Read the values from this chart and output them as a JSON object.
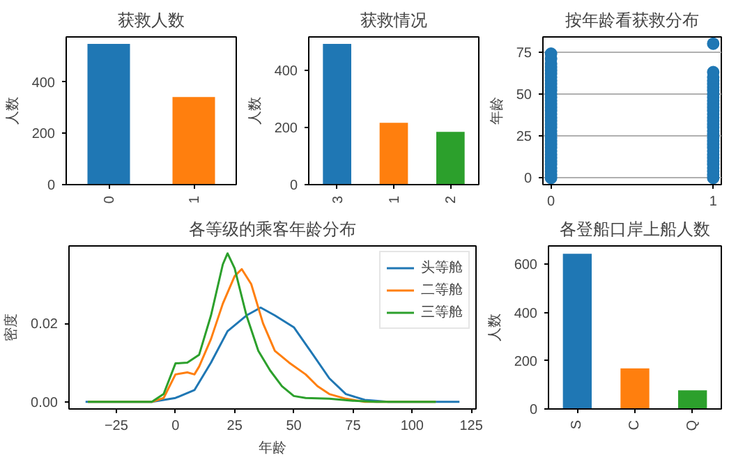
{
  "chart_data": [
    {
      "type": "bar",
      "title": "获救人数",
      "ylabel": "人数",
      "categories": [
        "0",
        "1"
      ],
      "values": [
        549,
        342
      ],
      "colors": [
        "#1f77b4",
        "#ff7f0e"
      ],
      "ylim": [
        0,
        576.45
      ],
      "yticks": [
        0,
        200,
        400
      ],
      "grid": false
    },
    {
      "type": "bar",
      "title": "获救情况",
      "ylabel": "人数",
      "categories": [
        "3",
        "1",
        "2"
      ],
      "values": [
        491,
        216,
        184
      ],
      "colors": [
        "#1f77b4",
        "#ff7f0e",
        "#2ca02c"
      ],
      "ylim": [
        0,
        515.55
      ],
      "yticks": [
        0,
        200,
        400
      ],
      "grid": false
    },
    {
      "type": "scatter",
      "title": "按年龄看获救分布",
      "ylabel": "年龄",
      "marker": "circle",
      "grid": "y",
      "xlim": [
        -0.05,
        1.05
      ],
      "xticks": [
        0,
        1
      ],
      "ylim": [
        -4,
        84
      ],
      "yticks": [
        0,
        25,
        50,
        75
      ],
      "series": [
        {
          "color": "#1f77b4",
          "x": [
            0,
            0,
            0,
            0,
            0,
            0,
            0,
            0,
            0,
            0,
            0,
            0,
            0,
            0,
            0,
            0,
            0,
            0,
            0,
            0,
            0,
            0,
            0,
            0,
            0,
            0,
            0,
            0,
            0,
            0,
            0,
            0,
            0,
            0,
            0,
            0,
            0,
            1,
            1,
            1,
            1,
            1,
            1,
            1,
            1,
            1,
            1,
            1,
            1,
            1,
            1,
            1,
            1,
            1,
            1,
            1,
            1,
            1,
            1,
            1,
            1,
            1,
            1,
            1,
            1,
            1,
            1,
            1,
            1,
            1
          ],
          "values": [
            0,
            2,
            4,
            6,
            8,
            10,
            12,
            14,
            16,
            18,
            20,
            22,
            24,
            26,
            28,
            30,
            32,
            34,
            36,
            38,
            40,
            42,
            44,
            46,
            48,
            50,
            52,
            54,
            56,
            58,
            60,
            62,
            64,
            66,
            68,
            71,
            74,
            0,
            2,
            4,
            6,
            8,
            10,
            12,
            14,
            16,
            18,
            20,
            22,
            24,
            26,
            28,
            30,
            32,
            34,
            36,
            38,
            40,
            42,
            44,
            46,
            48,
            50,
            52,
            54,
            56,
            58,
            60,
            63,
            80
          ]
        }
      ]
    },
    {
      "type": "line",
      "title": "各等级的乘客年龄分布",
      "xlabel": "年龄",
      "ylabel": "密度",
      "grid": false,
      "legend": "top right",
      "xlim": [
        -45,
        127
      ],
      "xticks": [
        -25,
        0,
        25,
        50,
        75,
        100,
        125
      ],
      "ylim": [
        -0.0018,
        0.0397
      ],
      "yticks": [
        {
          "value": 0,
          "label": "0.00"
        },
        {
          "value": 0.02,
          "label": "0.02"
        }
      ],
      "series": [
        {
          "name": "头等舱",
          "color": "#1f77b4",
          "x": [
            -38,
            -10,
            0,
            8,
            15,
            22,
            30,
            36,
            42,
            50,
            57,
            65,
            72,
            80,
            90,
            120
          ],
          "values": [
            0,
            0,
            0.001,
            0.003,
            0.01,
            0.018,
            0.022,
            0.024,
            0.022,
            0.019,
            0.013,
            0.006,
            0.002,
            0.0005,
            0,
            0
          ]
        },
        {
          "name": "二等舱",
          "color": "#ff7f0e",
          "x": [
            -37,
            -10,
            -5,
            0,
            5,
            8,
            10,
            15,
            20,
            25,
            28,
            32,
            37,
            42,
            48,
            55,
            60,
            65,
            72,
            80,
            110
          ],
          "values": [
            0,
            0,
            0.001,
            0.007,
            0.0075,
            0.007,
            0.009,
            0.016,
            0.025,
            0.032,
            0.0338,
            0.03,
            0.02,
            0.013,
            0.01,
            0.007,
            0.004,
            0.002,
            0.0008,
            0,
            0
          ]
        },
        {
          "name": "三等舱",
          "color": "#2ca02c",
          "x": [
            -37,
            -10,
            -5,
            0,
            5,
            10,
            15,
            20,
            22,
            25,
            30,
            35,
            40,
            45,
            50,
            55,
            65,
            75,
            85,
            110
          ],
          "values": [
            0,
            0,
            0.002,
            0.0098,
            0.01,
            0.012,
            0.022,
            0.035,
            0.0378,
            0.034,
            0.022,
            0.013,
            0.008,
            0.004,
            0.0015,
            0.001,
            0.0008,
            0.0003,
            0,
            0
          ]
        }
      ]
    },
    {
      "type": "bar",
      "title": "各登船口岸上船人数",
      "ylabel": "人数",
      "categories": [
        "S",
        "C",
        "Q"
      ],
      "values": [
        644,
        168,
        77
      ],
      "colors": [
        "#1f77b4",
        "#ff7f0e",
        "#2ca02c"
      ],
      "ylim": [
        0,
        676.2
      ],
      "yticks": [
        0,
        200,
        400,
        600
      ],
      "grid": false
    }
  ]
}
